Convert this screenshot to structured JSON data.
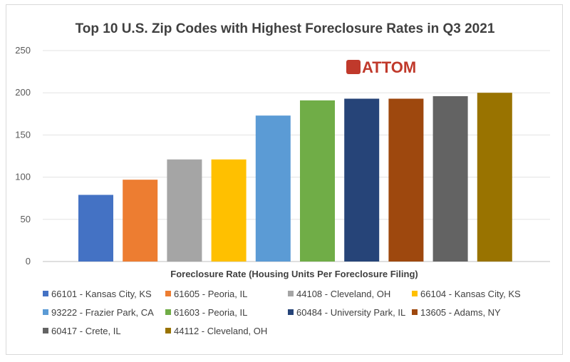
{
  "chart_data": {
    "type": "bar",
    "title": "Top 10 U.S. Zip Codes with Highest Foreclosure Rates in Q3 2021",
    "xlabel": "Foreclosure Rate (Housing Units Per Foreclosure Filing)",
    "ylabel": "",
    "ylim": [
      0,
      250
    ],
    "yticks": [
      0,
      50,
      100,
      150,
      200,
      250
    ],
    "grid": true,
    "legend_position": "bottom",
    "logo_text": "ATTOM",
    "series": [
      {
        "name": "66101 - Kansas City, KS",
        "value": 79,
        "color": "#4472C4"
      },
      {
        "name": "61605 - Peoria, IL",
        "value": 97,
        "color": "#ED7D31"
      },
      {
        "name": "44108 - Cleveland, OH",
        "value": 121,
        "color": "#A5A5A5"
      },
      {
        "name": "66104 - Kansas City, KS",
        "value": 121,
        "color": "#FFC000"
      },
      {
        "name": "93222 - Frazier Park, CA",
        "value": 173,
        "color": "#5B9BD5"
      },
      {
        "name": "61603 - Peoria, IL",
        "value": 191,
        "color": "#70AD47"
      },
      {
        "name": "60484 - University Park, IL",
        "value": 193,
        "color": "#264478"
      },
      {
        "name": "13605 - Adams, NY",
        "value": 193,
        "color": "#9E480E"
      },
      {
        "name": "60417 - Crete, IL",
        "value": 196,
        "color": "#636363"
      },
      {
        "name": "44112 - Cleveland, OH",
        "value": 200,
        "color": "#997300"
      }
    ]
  }
}
